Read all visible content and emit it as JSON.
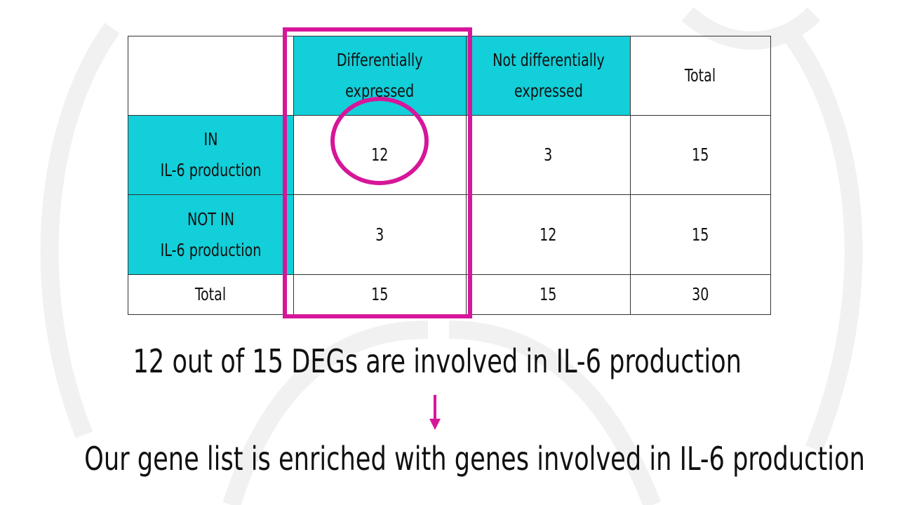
{
  "colors": {
    "header_fill": "#12cfd9",
    "accent": "#d6169a",
    "grid": "#333333"
  },
  "table": {
    "col_headers": [
      "",
      "Differentially\nexpressed",
      "Not differentially\nexpressed",
      "Total"
    ],
    "rows": [
      {
        "label": "IN\nIL-6 production",
        "values": [
          "12",
          "3",
          "15"
        ]
      },
      {
        "label": "NOT IN\nIL-6 production",
        "values": [
          "3",
          "12",
          "15"
        ]
      },
      {
        "label": "Total",
        "values": [
          "15",
          "15",
          "30"
        ]
      }
    ]
  },
  "statement_1": "12 out of 15 DEGs are involved in IL-6 production",
  "statement_2": "Our gene list is enriched with genes involved in IL-6 production",
  "icons": {
    "arrow": "arrow-down-icon",
    "watermark": "watermark-logo-icon"
  }
}
